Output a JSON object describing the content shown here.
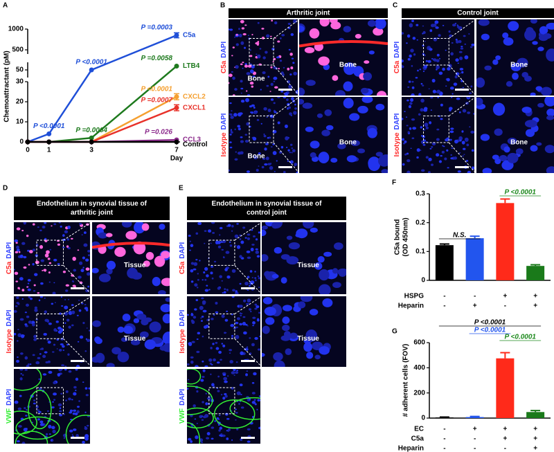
{
  "chart_data": [
    {
      "type": "line",
      "letter": "A",
      "ylabel": "Chemoattractant (pM)",
      "xlabel": "Day",
      "x": [
        0,
        1,
        3,
        7
      ],
      "xlim": [
        0,
        7
      ],
      "xticks": [
        0,
        1,
        3,
        7
      ],
      "y_segments": [
        [
          0,
          30
        ],
        [
          40,
          60
        ],
        [
          400,
          1000
        ]
      ],
      "yticks": [
        0,
        10,
        20,
        30,
        50,
        500,
        1000
      ],
      "series": [
        {
          "name": "C5a",
          "color": "#1f4fd8",
          "values": [
            0,
            4,
            50,
            850
          ],
          "errors": [
            null,
            null,
            null,
            60
          ],
          "annotations": [
            null,
            "P <0.0001",
            "P <0.0001",
            "P =0.0003"
          ]
        },
        {
          "name": "LTB4",
          "color": "#1e7a1e",
          "values": [
            0,
            0,
            2,
            55
          ],
          "errors": [
            null,
            null,
            null,
            null
          ],
          "annotations": [
            null,
            null,
            "P =0.0064",
            "P =0.0058"
          ]
        },
        {
          "name": "CXCL2",
          "color": "#f5a030",
          "values": [
            0,
            0,
            0,
            22.5
          ],
          "errors": [
            null,
            null,
            null,
            1.5
          ],
          "annotations": [
            null,
            null,
            null,
            "P <0.0001"
          ]
        },
        {
          "name": "CXCL1",
          "color": "#e8322a",
          "values": [
            0,
            0,
            0,
            17
          ],
          "errors": [
            null,
            null,
            null,
            1.5
          ],
          "annotations": [
            null,
            null,
            null,
            "P =0.0007"
          ]
        },
        {
          "name": "CCL3",
          "color": "#8b2a8b",
          "values": [
            0,
            0,
            0,
            1
          ],
          "errors": [
            null,
            null,
            null,
            null
          ],
          "annotations": [
            null,
            null,
            null,
            "P =0.026"
          ]
        },
        {
          "name": "Control",
          "color": "#000000",
          "values": [
            0,
            0,
            0,
            0
          ],
          "errors": [
            null,
            null,
            null,
            null
          ],
          "annotations": [
            null,
            null,
            null,
            null
          ]
        }
      ]
    },
    {
      "type": "bar",
      "letter": "F",
      "ylabel": [
        "C5a bound",
        "(OD 450nm)"
      ],
      "values": [
        0.122,
        0.146,
        0.268,
        0.05
      ],
      "errors": [
        0.004,
        0.007,
        0.014,
        0.004
      ],
      "colors": [
        "#000000",
        "#2255ee",
        "#ff2a1a",
        "#1a7a1a"
      ],
      "ylim": [
        0,
        0.3
      ],
      "yticks": [
        0,
        0.1,
        0.2,
        0.3
      ],
      "conditions": [
        {
          "name": "HSPG",
          "marks": [
            "-",
            "-",
            "+",
            "+"
          ]
        },
        {
          "name": "Heparin",
          "marks": [
            "-",
            "+",
            "-",
            "+"
          ]
        }
      ],
      "annotations": [
        {
          "text": "N.S.",
          "color": "#000000"
        },
        {
          "text": "P <0.0001",
          "color": "#1e8a1e"
        }
      ]
    },
    {
      "type": "bar",
      "letter": "G",
      "ylabel": [
        "# adherent cells (FOV)"
      ],
      "values": [
        5,
        8,
        475,
        48
      ],
      "errors": [
        3,
        5,
        45,
        12
      ],
      "colors": [
        "#000000",
        "#2255ee",
        "#ff2a1a",
        "#1a7a1a"
      ],
      "ylim": [
        0,
        600
      ],
      "yticks": [
        0,
        200,
        400,
        600
      ],
      "conditions": [
        {
          "name": "EC",
          "marks": [
            "-",
            "+",
            "+",
            "+"
          ]
        },
        {
          "name": "C5a",
          "marks": [
            "-",
            "-",
            "+",
            "+"
          ]
        },
        {
          "name": "Heparin",
          "marks": [
            "-",
            "-",
            "-",
            "+"
          ]
        }
      ],
      "annotations": [
        {
          "text": "P <0.0001",
          "color": "#2255ee"
        },
        {
          "text": "P <0.0001",
          "color": "#1e8a1e"
        },
        {
          "text": "P <0.0001",
          "color": "#000000"
        }
      ]
    }
  ],
  "images": [
    {
      "letter": "B",
      "title": [
        "Arthritic joint"
      ],
      "rows": [
        {
          "stain": "C5a",
          "stain_color": "#ff2a2a",
          "counter": "DAPI",
          "labels": [
            "Bone",
            "Bone"
          ]
        },
        {
          "stain": "Isotype",
          "stain_color": "#ff2a2a",
          "counter": "DAPI",
          "labels": [
            "Bone",
            "Bone"
          ]
        }
      ]
    },
    {
      "letter": "C",
      "title": [
        "Control joint"
      ],
      "rows": [
        {
          "stain": "C5a",
          "stain_color": "#ff2a2a",
          "counter": "DAPI",
          "labels": [
            null,
            "Bone"
          ]
        },
        {
          "stain": "Isotype",
          "stain_color": "#ff2a2a",
          "counter": "DAPI",
          "labels": [
            null,
            "Bone"
          ]
        }
      ]
    },
    {
      "letter": "D",
      "title": [
        "Endothelium in synovial tissue of",
        "arthritic joint"
      ],
      "rows": [
        {
          "stain": "C5a",
          "stain_color": "#ff2a2a",
          "counter": "DAPI",
          "labels": [
            null,
            "Tissue"
          ]
        },
        {
          "stain": "Isotype",
          "stain_color": "#ff2a2a",
          "counter": "DAPI",
          "labels": [
            null,
            "Tissue"
          ]
        },
        {
          "stain": "VWF",
          "stain_color": "#33ee33",
          "counter": "DAPI",
          "labels": [
            null
          ]
        }
      ]
    },
    {
      "letter": "E",
      "title": [
        "Endothelium in synovial tissue of",
        "control joint"
      ],
      "rows": [
        {
          "stain": "C5a",
          "stain_color": "#ff2a2a",
          "counter": "DAPI",
          "labels": [
            null,
            "Tissue"
          ]
        },
        {
          "stain": "Isotype",
          "stain_color": "#ff2a2a",
          "counter": "DAPI",
          "labels": [
            null,
            "Tissue"
          ]
        },
        {
          "stain": "VWF",
          "stain_color": "#33ee33",
          "counter": "DAPI",
          "labels": [
            null
          ]
        }
      ]
    }
  ]
}
